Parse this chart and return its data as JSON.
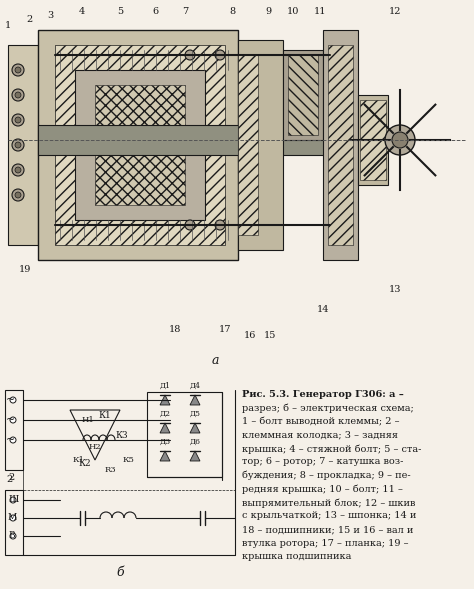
{
  "title": "Рис. 5.3. Генератор Г306:",
  "description_lines": [
    "Рис. 5.3. Генератор Г306: а –",
    "разрез; б – электрическая схема;",
    "1 – болт выводной клеммы; 2 –",
    "клеммная колодка; 3 – задняя",
    "крышка; 4 – стяжной болт; 5 – ста-",
    "тор; 6 – ротор; 7 – катушка воз-",
    "буждения; 8 – прокладка; 9 – пе-",
    "редняя крышка; 10 – болт; 11 –",
    "выпрямительный блок; 12 – шкив",
    "с крыльчаткой; 13 – шпонка; 14 и",
    "18 – подшипники; 15 и 16 – вал и",
    "втулка ротора; 17 – планка; 19 –",
    "крышка подшипника"
  ],
  "bg_color": "#f5f0e8",
  "line_color": "#1a1a1a",
  "text_color": "#1a1a1a"
}
